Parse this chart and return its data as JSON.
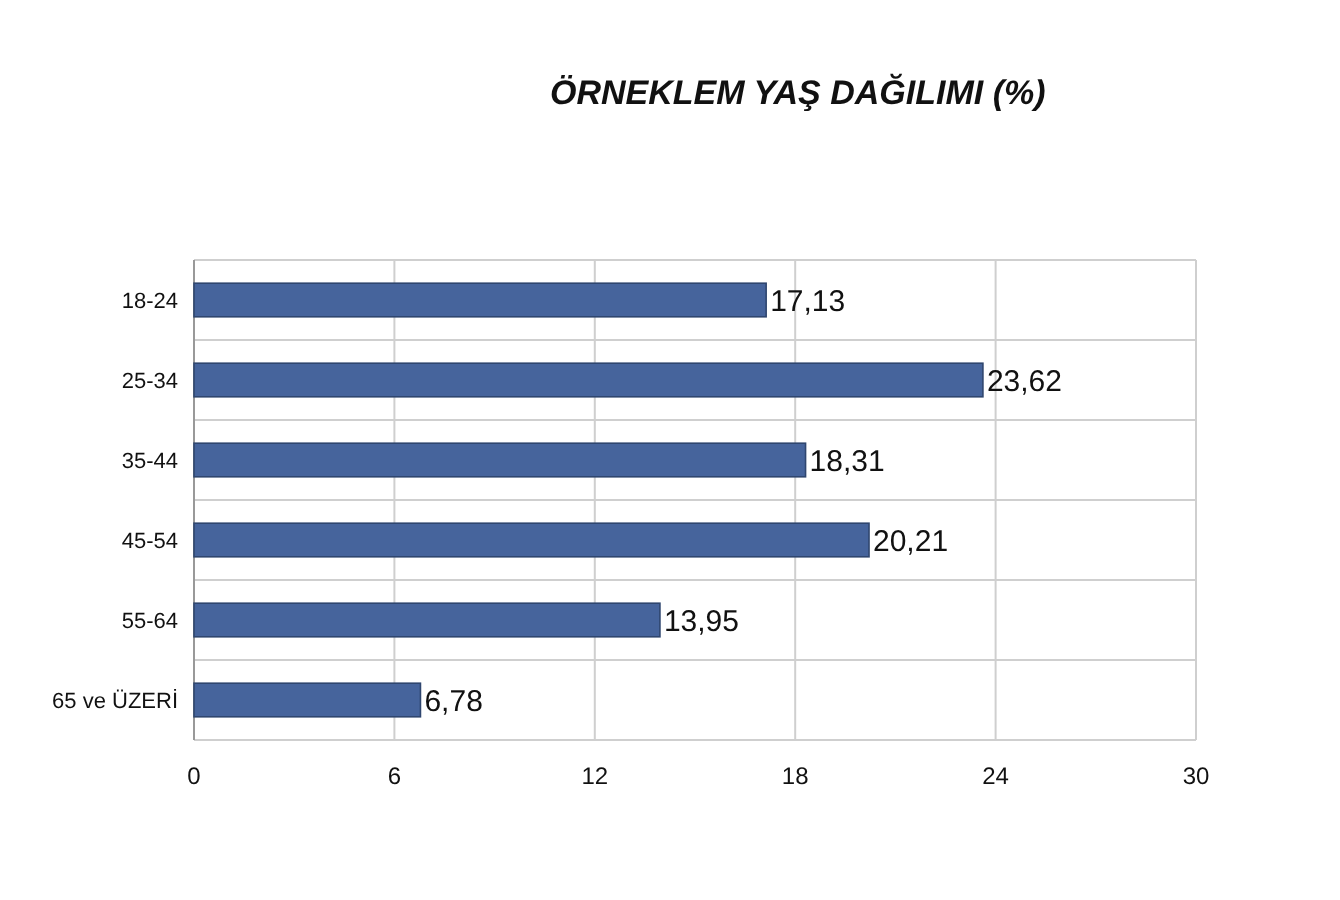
{
  "chart_data": {
    "type": "bar",
    "orientation": "horizontal",
    "title": "ÖRNEKLEM YAŞ DAĞILIMI (%)",
    "categories": [
      "18-24",
      "25-34",
      "35-44",
      "45-54",
      "55-64",
      "65 ve ÜZERİ"
    ],
    "values": [
      17.13,
      23.62,
      18.31,
      20.21,
      13.95,
      6.78
    ],
    "value_labels": [
      "17,13",
      "23,62",
      "18,31",
      "20,21",
      "13,95",
      "6,78"
    ],
    "color": "#46649c",
    "xlim": [
      0,
      30
    ],
    "xticks": [
      0,
      6,
      12,
      18,
      24,
      30
    ],
    "grid": true
  }
}
